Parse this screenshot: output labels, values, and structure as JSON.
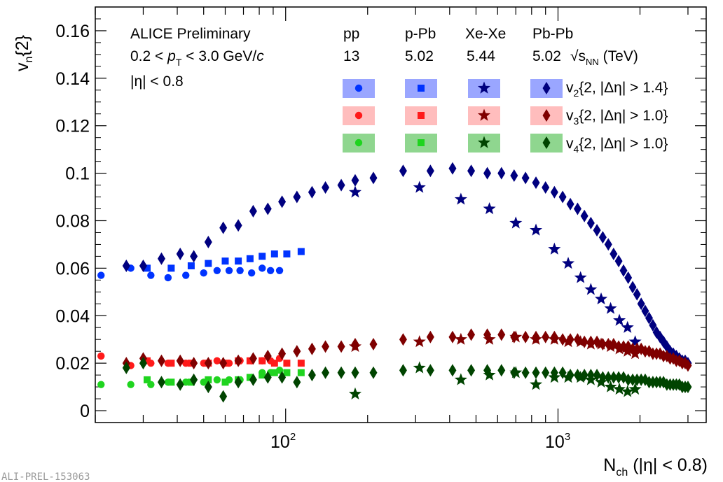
{
  "chart_data": {
    "type": "scatter",
    "x_scale": "log",
    "xlim": [
      20,
      3500
    ],
    "ylim": [
      -0.005,
      0.17
    ],
    "xlabel": "N_ch (|η| < 0.8)",
    "ylabel": "v_n{2}",
    "yticks": [
      0,
      0.02,
      0.04,
      0.06,
      0.08,
      0.1,
      0.12,
      0.14,
      0.16
    ],
    "ytick_labels": [
      "0",
      "0.02",
      "0.04",
      "0.06",
      "0.08",
      "0.1",
      "0.12",
      "0.14",
      "0.16"
    ],
    "xtick_labels": [
      "10",
      "2",
      "10",
      "3"
    ],
    "grid": false,
    "annotations": {
      "experiment": "ALICE Preliminary",
      "pt_range": "0.2 < p_T < 3.0 GeV/c",
      "eta_range": "|η| < 0.8",
      "footer": "ALI-PREL-153063"
    },
    "legend": {
      "placement": "top-right",
      "systems": [
        "pp",
        "p-Pb",
        "Xe-Xe",
        "Pb-Pb"
      ],
      "energies": [
        "13",
        "5.02",
        "5.44",
        "5.02"
      ],
      "energy_unit": "√s_NN (TeV)",
      "rows": [
        "v_2{2, |Δη| > 1.4}",
        "v_3{2, |Δη| > 1.0}",
        "v_4{2, |Δη| > 1.0}"
      ]
    },
    "colors": {
      "v2_light": "#0033ff",
      "v2_dark": "#00007f",
      "v3_light": "#ff1a1a",
      "v3_dark": "#7f0000",
      "v4_light": "#1fd41f",
      "v4_dark": "#004400",
      "v2_box": "#9aa6ff",
      "v3_box": "#ffbdbd",
      "v4_box": "#8fd68f"
    },
    "series": [
      {
        "system": "pp",
        "harmonic": "v2",
        "marker": "circle",
        "x": [
          21,
          27,
          32,
          37,
          43,
          50,
          56,
          62,
          68,
          75,
          82,
          88,
          95
        ],
        "y": [
          0.057,
          0.06,
          0.057,
          0.056,
          0.057,
          0.058,
          0.059,
          0.059,
          0.059,
          0.058,
          0.06,
          0.059,
          0.059
        ]
      },
      {
        "system": "pp",
        "harmonic": "v3",
        "marker": "circle",
        "x": [
          21,
          27,
          32,
          37,
          43,
          50,
          56,
          62,
          68,
          75,
          82,
          88,
          95
        ],
        "y": [
          0.023,
          0.019,
          0.02,
          0.02,
          0.02,
          0.02,
          0.021,
          0.02,
          0.021,
          0.021,
          0.021,
          0.021,
          0.022
        ]
      },
      {
        "system": "pp",
        "harmonic": "v4",
        "marker": "circle",
        "x": [
          21,
          27,
          32,
          37,
          43,
          50,
          56,
          62,
          68,
          75,
          82,
          88,
          95
        ],
        "y": [
          0.011,
          0.011,
          0.011,
          0.012,
          0.012,
          0.012,
          0.013,
          0.013,
          0.013,
          0.014,
          0.016,
          0.016,
          0.017
        ]
      },
      {
        "system": "p-Pb",
        "harmonic": "v2",
        "marker": "square",
        "x": [
          31,
          38,
          45,
          52,
          60,
          67,
          74,
          82,
          91,
          101,
          114
        ],
        "y": [
          0.06,
          0.06,
          0.061,
          0.062,
          0.063,
          0.063,
          0.064,
          0.065,
          0.066,
          0.066,
          0.067
        ]
      },
      {
        "system": "p-Pb",
        "harmonic": "v3",
        "marker": "square",
        "x": [
          31,
          38,
          45,
          52,
          60,
          67,
          74,
          82,
          91,
          101,
          114
        ],
        "y": [
          0.021,
          0.02,
          0.02,
          0.02,
          0.02,
          0.021,
          0.021,
          0.021,
          0.02,
          0.02,
          0.02
        ]
      },
      {
        "system": "p-Pb",
        "harmonic": "v4",
        "marker": "square",
        "x": [
          31,
          38,
          45,
          52,
          60,
          67,
          74,
          82,
          91,
          101,
          114
        ],
        "y": [
          0.013,
          0.012,
          0.012,
          0.013,
          0.012,
          0.013,
          0.014,
          0.015,
          0.016,
          0.016,
          0.016
        ]
      },
      {
        "system": "Xe-Xe",
        "harmonic": "v2",
        "marker": "star",
        "x": [
          180,
          310,
          440,
          560,
          700,
          830,
          970,
          1090,
          1210,
          1320,
          1440,
          1560,
          1680,
          1800,
          1920
        ],
        "y": [
          0.092,
          0.094,
          0.089,
          0.085,
          0.079,
          0.076,
          0.068,
          0.062,
          0.056,
          0.051,
          0.047,
          0.043,
          0.038,
          0.035,
          0.029
        ]
      },
      {
        "system": "Xe-Xe",
        "harmonic": "v3",
        "marker": "star",
        "x": [
          180,
          310,
          440,
          560,
          700,
          830,
          970,
          1090,
          1210,
          1320,
          1440,
          1560,
          1680,
          1800,
          1920
        ],
        "y": [
          0.027,
          0.029,
          0.03,
          0.03,
          0.031,
          0.03,
          0.03,
          0.029,
          0.029,
          0.028,
          0.028,
          0.027,
          0.026,
          0.025,
          0.024
        ]
      },
      {
        "system": "Xe-Xe",
        "harmonic": "v4",
        "marker": "star",
        "x": [
          180,
          310,
          440,
          560,
          700,
          830,
          970,
          1090,
          1210,
          1320,
          1440,
          1560,
          1680,
          1800,
          1920
        ],
        "y": [
          0.007,
          0.018,
          0.013,
          0.015,
          0.016,
          0.011,
          0.014,
          0.014,
          0.014,
          0.013,
          0.012,
          0.01,
          0.009,
          0.008,
          0.009
        ]
      },
      {
        "system": "Pb-Pb",
        "harmonic": "v2",
        "marker": "diamond",
        "x": [
          26,
          30,
          35,
          41,
          46,
          52,
          59,
          67,
          76,
          86,
          97,
          110,
          125,
          140,
          160,
          180,
          210,
          270,
          340,
          410,
          480,
          550,
          620,
          690,
          760,
          830,
          900,
          970,
          1040,
          1110,
          1180,
          1250,
          1320,
          1390,
          1460,
          1530,
          1600,
          1670,
          1740,
          1810,
          1880,
          1950,
          2020,
          2090,
          2160,
          2230,
          2300,
          2370,
          2440,
          2510,
          2580,
          2650,
          2720,
          2790,
          2860,
          2930,
          3000
        ],
        "y": [
          0.061,
          0.061,
          0.064,
          0.066,
          0.065,
          0.071,
          0.077,
          0.078,
          0.084,
          0.085,
          0.088,
          0.09,
          0.092,
          0.094,
          0.095,
          0.097,
          0.098,
          0.101,
          0.101,
          0.102,
          0.101,
          0.1,
          0.1,
          0.099,
          0.098,
          0.096,
          0.094,
          0.092,
          0.09,
          0.087,
          0.085,
          0.082,
          0.079,
          0.076,
          0.073,
          0.07,
          0.066,
          0.063,
          0.059,
          0.056,
          0.052,
          0.049,
          0.045,
          0.042,
          0.039,
          0.036,
          0.033,
          0.031,
          0.029,
          0.027,
          0.025,
          0.024,
          0.023,
          0.022,
          0.021,
          0.021,
          0.02
        ]
      },
      {
        "system": "Pb-Pb",
        "harmonic": "v3",
        "marker": "diamond",
        "x": [
          26,
          30,
          35,
          41,
          46,
          52,
          59,
          67,
          76,
          86,
          97,
          110,
          125,
          140,
          160,
          180,
          210,
          270,
          340,
          410,
          480,
          550,
          620,
          690,
          760,
          830,
          900,
          970,
          1040,
          1110,
          1180,
          1250,
          1320,
          1390,
          1460,
          1530,
          1600,
          1670,
          1740,
          1810,
          1880,
          1950,
          2020,
          2090,
          2160,
          2230,
          2300,
          2370,
          2440,
          2510,
          2580,
          2650,
          2720,
          2790,
          2860,
          2930,
          3000
        ],
        "y": [
          0.02,
          0.022,
          0.021,
          0.021,
          0.02,
          0.02,
          0.02,
          0.021,
          0.022,
          0.023,
          0.024,
          0.025,
          0.026,
          0.027,
          0.027,
          0.028,
          0.028,
          0.03,
          0.031,
          0.031,
          0.032,
          0.032,
          0.032,
          0.031,
          0.031,
          0.031,
          0.031,
          0.031,
          0.03,
          0.03,
          0.03,
          0.029,
          0.029,
          0.029,
          0.028,
          0.028,
          0.028,
          0.027,
          0.027,
          0.027,
          0.026,
          0.026,
          0.026,
          0.025,
          0.025,
          0.024,
          0.024,
          0.024,
          0.023,
          0.023,
          0.022,
          0.022,
          0.021,
          0.021,
          0.02,
          0.02,
          0.019
        ]
      },
      {
        "system": "Pb-Pb",
        "harmonic": "v4",
        "marker": "diamond",
        "x": [
          26,
          30,
          35,
          41,
          46,
          52,
          59,
          67,
          76,
          86,
          97,
          110,
          125,
          140,
          160,
          180,
          210,
          270,
          340,
          410,
          480,
          550,
          620,
          690,
          760,
          830,
          900,
          970,
          1040,
          1110,
          1180,
          1250,
          1320,
          1390,
          1460,
          1530,
          1600,
          1670,
          1740,
          1810,
          1880,
          1950,
          2020,
          2090,
          2160,
          2230,
          2300,
          2370,
          2440,
          2510,
          2580,
          2650,
          2720,
          2790,
          2860,
          2930,
          3000
        ],
        "y": [
          0.018,
          0.02,
          0.012,
          0.011,
          0.013,
          0.01,
          0.006,
          0.012,
          0.013,
          0.014,
          0.014,
          0.012,
          0.015,
          0.016,
          0.016,
          0.016,
          0.016,
          0.017,
          0.017,
          0.017,
          0.017,
          0.017,
          0.017,
          0.016,
          0.016,
          0.016,
          0.016,
          0.016,
          0.016,
          0.015,
          0.015,
          0.015,
          0.015,
          0.015,
          0.014,
          0.014,
          0.014,
          0.014,
          0.014,
          0.013,
          0.013,
          0.013,
          0.013,
          0.013,
          0.012,
          0.012,
          0.012,
          0.012,
          0.012,
          0.011,
          0.011,
          0.011,
          0.011,
          0.011,
          0.01,
          0.01,
          0.01
        ]
      }
    ]
  }
}
